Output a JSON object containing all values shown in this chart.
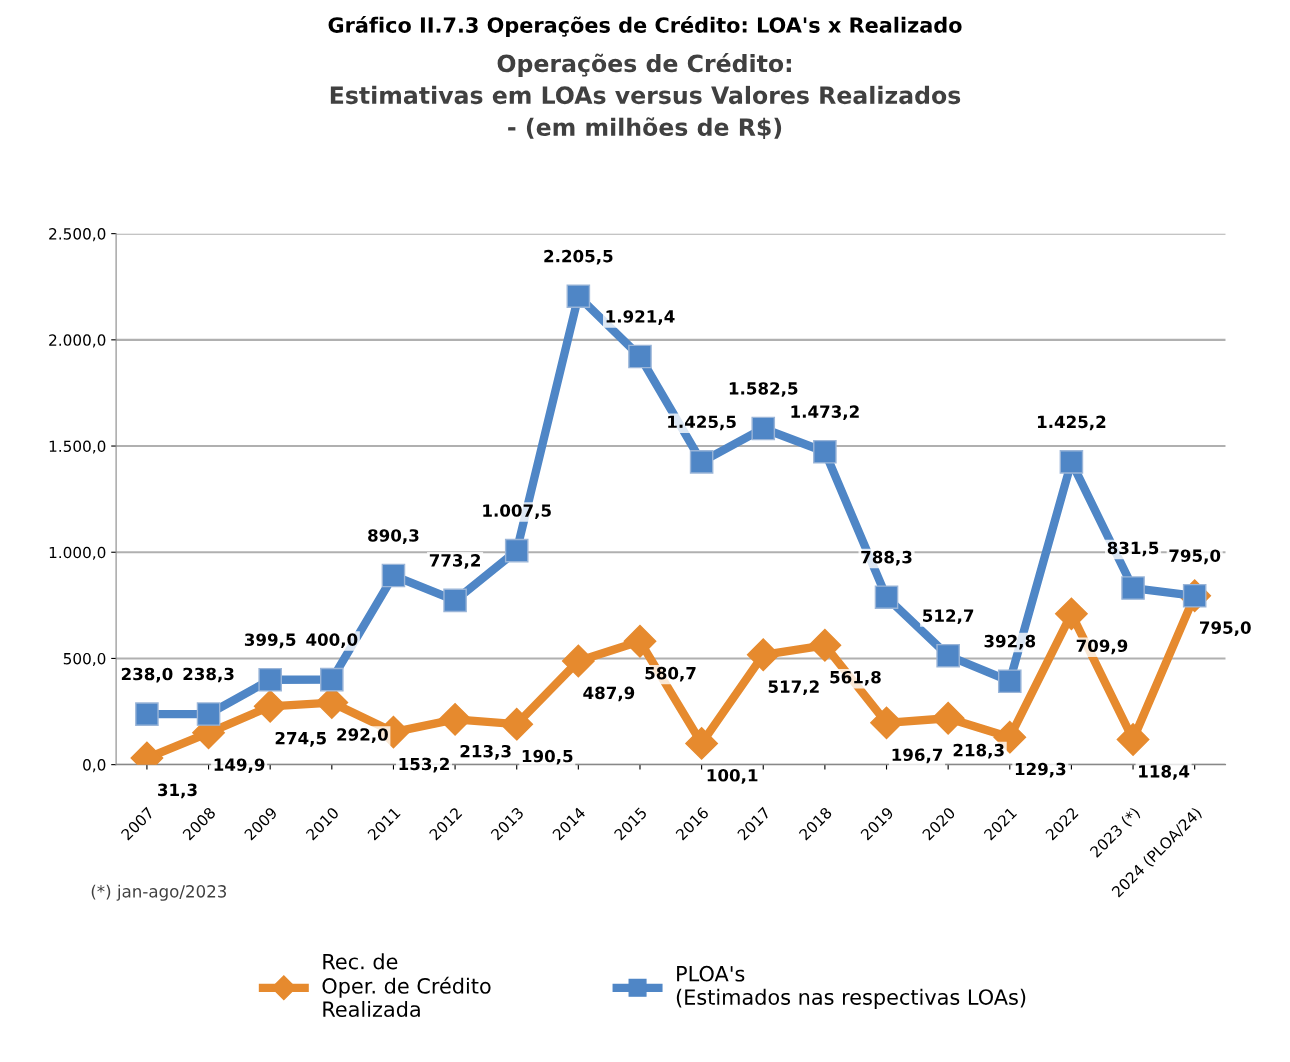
{
  "chart_data": {
    "type": "line",
    "title": "Gráfico II.7.3 Operações de Crédito: LOA's x Realizado",
    "subtitle": "Operações de Crédito:\nEstimativas em LOAs versus Valores Realizados\n- (em milhões de R$)",
    "categories": [
      "2007",
      "2008",
      "2009",
      "2010",
      "2011",
      "2012",
      "2013",
      "2014",
      "2015",
      "2016",
      "2017",
      "2018",
      "2019",
      "2020",
      "2021",
      "2022",
      "2023 (*)",
      "2024 (PLOA/24)"
    ],
    "series": [
      {
        "name": "Rec. de\nOper. de Crédito\nRealizada",
        "color": "#e68a2e",
        "marker": "diamond",
        "values": [
          31.3,
          149.9,
          274.5,
          292.0,
          153.2,
          213.3,
          190.5,
          487.9,
          580.7,
          100.1,
          517.2,
          561.8,
          196.7,
          218.3,
          129.3,
          709.9,
          118.4,
          795.0
        ],
        "value_labels": [
          "31,3",
          "149,9",
          "274,5",
          "292,0",
          "153,2",
          "213,3",
          "190,5",
          "487,9",
          "580,7",
          "100,1",
          "517,2",
          "561,8",
          "196,7",
          "218,3",
          "129,3",
          "709,9",
          "118,4",
          "795,0"
        ]
      },
      {
        "name": "PLOA's\n(Estimados nas respectivas LOAs)",
        "color": "#4f86c6",
        "marker": "square",
        "values": [
          238.0,
          238.3,
          399.5,
          400.0,
          890.3,
          773.2,
          1007.5,
          2205.5,
          1921.4,
          1425.5,
          1582.5,
          1473.2,
          788.3,
          512.7,
          392.8,
          1425.2,
          831.5,
          795.0
        ],
        "value_labels": [
          "238,0",
          "238,3",
          "399,5",
          "400,0",
          "890,3",
          "773,2",
          "1.007,5",
          "2.205,5",
          "1.921,4",
          "1.425,5",
          "1.582,5",
          "1.473,2",
          "788,3",
          "512,7",
          "392,8",
          "1.425,2",
          "831,5",
          "795,0"
        ]
      }
    ],
    "ylim": [
      0,
      2500
    ],
    "yticks": [
      {
        "value": 0,
        "label": "0,0"
      },
      {
        "value": 500,
        "label": "500,0"
      },
      {
        "value": 1000,
        "label": "1.000,0"
      },
      {
        "value": 1500,
        "label": "1.500,0"
      },
      {
        "value": 2000,
        "label": "2.000,0"
      },
      {
        "value": 2500,
        "label": "2.500,0"
      }
    ],
    "grid": "y",
    "legend": "bottom",
    "line_style": "solid",
    "annotations": [
      "(*) jan-ago/2023"
    ]
  }
}
